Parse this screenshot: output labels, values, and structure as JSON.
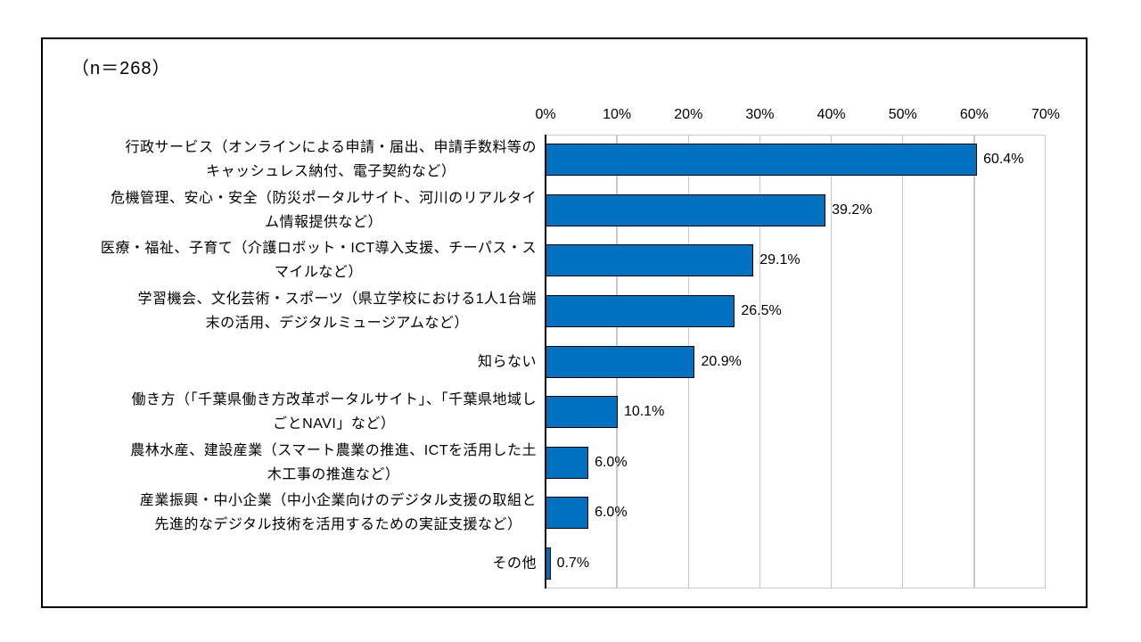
{
  "figure": {
    "n_label": "（n＝268）"
  },
  "chart_data": {
    "type": "bar",
    "orientation": "horizontal",
    "title": "",
    "xlabel": "",
    "ylabel": "",
    "xlim": [
      0,
      70
    ],
    "x_ticks": [
      "0%",
      "10%",
      "20%",
      "30%",
      "40%",
      "50%",
      "60%",
      "70%"
    ],
    "grid": true,
    "legend": false,
    "categories": [
      "行政サービス（オンラインによる申請・届出、申請手数料等のキャッシュレス納付、電子契約など）",
      "危機管理、安心・安全（防災ポータルサイト、河川のリアルタイム情報提供など）",
      "医療・福祉、子育て（介護ロボット・ICT導入支援、チーパス・スマイルなど）",
      "学習機会、文化芸術・スポーツ（県立学校における1人1台端末の活用、デジタルミュージアムなど）",
      "知らない",
      "働き方（「千葉県働き方改革ポータルサイト」、「千葉県地域しごとNAVI」など）",
      "農林水産、建設産業（スマート農業の推進、ICTを活用した土木工事の推進など）",
      "産業振興・中小企業（中小企業向けのデジタル支援の取組と先進的なデジタル技術を活用するための実証支援など）",
      "その他"
    ],
    "category_lines": [
      [
        "行政サービス（オンラインによる申請・届出、申請手数料等の",
        "キャッシュレス納付、電子契約など）"
      ],
      [
        "危機管理、安心・安全（防災ポータルサイト、河川のリアルタイ",
        "ム情報提供など）"
      ],
      [
        "医療・福祉、子育て（介護ロボット・ICT導入支援、チーパス・ス",
        "マイルなど）"
      ],
      [
        "学習機会、文化芸術・スポーツ（県立学校における1人1台端",
        "末の活用、デジタルミュージアムなど）"
      ],
      [
        "知らない"
      ],
      [
        "働き方（「千葉県働き方改革ポータルサイト」、「千葉県地域し",
        "ごとNAVI」など）"
      ],
      [
        "農林水産、建設産業（スマート農業の推進、ICTを活用した土",
        "木工事の推進など）"
      ],
      [
        "産業振興・中小企業（中小企業向けのデジタル支援の取組と",
        "先進的なデジタル技術を活用するための実証支援など）"
      ],
      [
        "その他"
      ]
    ],
    "values": [
      60.4,
      39.2,
      29.1,
      26.5,
      20.9,
      10.1,
      6.0,
      6.0,
      0.7
    ],
    "value_labels": [
      "60.4%",
      "39.2%",
      "29.1%",
      "26.5%",
      "20.9%",
      "10.1%",
      "6.0%",
      "6.0%",
      "0.7%"
    ],
    "colors": {
      "bar_fill": "#0070C0",
      "bar_border": "#000000",
      "gridline": "#C9C9C9",
      "axis_line": "#000000",
      "frame_border": "#000000",
      "text": "#000000",
      "background": "#FFFFFF"
    }
  }
}
